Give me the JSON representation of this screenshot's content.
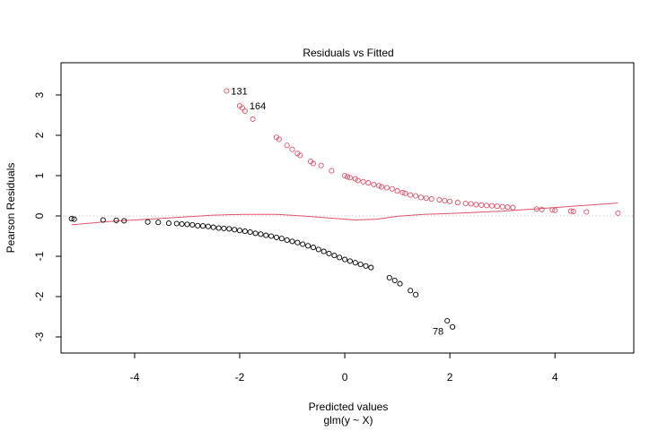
{
  "chart_data": {
    "type": "scatter",
    "title": "Residuals vs Fitted",
    "xlabel": "Predicted values",
    "xlabel_sub": "glm(y ~ X)",
    "ylabel": "Pearson Residuals",
    "xlim": [
      -5.4,
      5.5
    ],
    "ylim": [
      -3.4,
      3.8
    ],
    "x_ticks": [
      -4,
      -2,
      0,
      2,
      4
    ],
    "x_tick_labels": [
      "-4",
      "-2",
      "0",
      "2",
      "4"
    ],
    "y_ticks": [
      -3,
      -2,
      -1,
      0,
      1,
      2,
      3
    ],
    "y_tick_labels": [
      "-3",
      "-2",
      "-1",
      "0",
      "1",
      "2",
      "3"
    ],
    "grid": false,
    "reference_line": {
      "y": 0,
      "style": "dotted",
      "color": "#bebebe"
    },
    "colors": {
      "positive": "#DF536B",
      "negative": "#000000",
      "smooth": "#DF536B"
    },
    "series": [
      {
        "color": "#DF536B",
        "points": [
          [
            -2.25,
            3.1
          ],
          [
            -2.0,
            2.73
          ],
          [
            -1.95,
            2.68
          ],
          [
            -1.9,
            2.6
          ],
          [
            -1.75,
            2.4
          ],
          [
            -1.3,
            1.95
          ],
          [
            -1.25,
            1.9
          ],
          [
            -1.1,
            1.75
          ],
          [
            -1.0,
            1.65
          ],
          [
            -0.9,
            1.55
          ],
          [
            -0.85,
            1.5
          ],
          [
            -0.65,
            1.35
          ],
          [
            -0.6,
            1.3
          ],
          [
            -0.45,
            1.25
          ],
          [
            -0.25,
            1.12
          ],
          [
            0.0,
            1.0
          ],
          [
            0.05,
            0.97
          ],
          [
            0.1,
            0.95
          ],
          [
            0.2,
            0.92
          ],
          [
            0.25,
            0.88
          ],
          [
            0.35,
            0.85
          ],
          [
            0.45,
            0.82
          ],
          [
            0.55,
            0.78
          ],
          [
            0.65,
            0.75
          ],
          [
            0.7,
            0.72
          ],
          [
            0.8,
            0.7
          ],
          [
            0.9,
            0.67
          ],
          [
            1.0,
            0.62
          ],
          [
            1.1,
            0.58
          ],
          [
            1.15,
            0.56
          ],
          [
            1.25,
            0.52
          ],
          [
            1.35,
            0.5
          ],
          [
            1.45,
            0.46
          ],
          [
            1.55,
            0.44
          ],
          [
            1.65,
            0.42
          ],
          [
            1.8,
            0.4
          ],
          [
            1.9,
            0.38
          ],
          [
            2.0,
            0.36
          ],
          [
            2.15,
            0.33
          ],
          [
            2.3,
            0.31
          ],
          [
            2.4,
            0.3
          ],
          [
            2.5,
            0.28
          ],
          [
            2.6,
            0.27
          ],
          [
            2.7,
            0.26
          ],
          [
            2.8,
            0.25
          ],
          [
            2.9,
            0.24
          ],
          [
            3.0,
            0.23
          ],
          [
            3.1,
            0.22
          ],
          [
            3.2,
            0.21
          ],
          [
            3.65,
            0.17
          ],
          [
            3.75,
            0.16
          ],
          [
            3.95,
            0.15
          ],
          [
            4.0,
            0.14
          ],
          [
            4.3,
            0.12
          ],
          [
            4.35,
            0.11
          ],
          [
            4.6,
            0.1
          ],
          [
            5.2,
            0.07
          ]
        ]
      },
      {
        "color": "#000000",
        "points": [
          [
            -5.2,
            -0.07
          ],
          [
            -5.15,
            -0.08
          ],
          [
            -4.6,
            -0.1
          ],
          [
            -4.35,
            -0.11
          ],
          [
            -4.2,
            -0.12
          ],
          [
            -3.75,
            -0.15
          ],
          [
            -3.55,
            -0.16
          ],
          [
            -3.35,
            -0.18
          ],
          [
            -3.2,
            -0.19
          ],
          [
            -3.1,
            -0.2
          ],
          [
            -3.0,
            -0.21
          ],
          [
            -2.9,
            -0.22
          ],
          [
            -2.8,
            -0.24
          ],
          [
            -2.7,
            -0.25
          ],
          [
            -2.6,
            -0.26
          ],
          [
            -2.5,
            -0.28
          ],
          [
            -2.4,
            -0.3
          ],
          [
            -2.3,
            -0.31
          ],
          [
            -2.2,
            -0.32
          ],
          [
            -2.1,
            -0.34
          ],
          [
            -2.0,
            -0.36
          ],
          [
            -1.9,
            -0.38
          ],
          [
            -1.8,
            -0.4
          ],
          [
            -1.7,
            -0.43
          ],
          [
            -1.6,
            -0.45
          ],
          [
            -1.5,
            -0.48
          ],
          [
            -1.4,
            -0.5
          ],
          [
            -1.3,
            -0.53
          ],
          [
            -1.2,
            -0.56
          ],
          [
            -1.1,
            -0.6
          ],
          [
            -1.0,
            -0.63
          ],
          [
            -0.9,
            -0.66
          ],
          [
            -0.8,
            -0.7
          ],
          [
            -0.7,
            -0.74
          ],
          [
            -0.6,
            -0.78
          ],
          [
            -0.5,
            -0.83
          ],
          [
            -0.4,
            -0.88
          ],
          [
            -0.3,
            -0.93
          ],
          [
            -0.2,
            -0.98
          ],
          [
            -0.1,
            -1.03
          ],
          [
            0.0,
            -1.08
          ],
          [
            0.1,
            -1.12
          ],
          [
            0.2,
            -1.16
          ],
          [
            0.3,
            -1.2
          ],
          [
            0.4,
            -1.24
          ],
          [
            0.5,
            -1.28
          ],
          [
            0.85,
            -1.53
          ],
          [
            0.95,
            -1.6
          ],
          [
            1.05,
            -1.68
          ],
          [
            1.25,
            -1.85
          ],
          [
            1.35,
            -1.95
          ],
          [
            1.95,
            -2.6
          ],
          [
            2.05,
            -2.75
          ]
        ]
      }
    ],
    "smooth_line": [
      [
        -5.2,
        -0.22
      ],
      [
        -4.5,
        -0.14
      ],
      [
        -3.5,
        -0.06
      ],
      [
        -2.5,
        0.02
      ],
      [
        -1.9,
        0.04
      ],
      [
        -1.3,
        0.04
      ],
      [
        -0.8,
        0.0
      ],
      [
        -0.3,
        -0.05
      ],
      [
        0.2,
        -0.1
      ],
      [
        0.6,
        -0.08
      ],
      [
        1.0,
        -0.01
      ],
      [
        1.5,
        0.04
      ],
      [
        2.0,
        0.06
      ],
      [
        3.0,
        0.12
      ],
      [
        4.0,
        0.21
      ],
      [
        5.2,
        0.32
      ]
    ],
    "annotations": [
      {
        "text": "131",
        "x": -2.25,
        "y": 3.1,
        "anchor": "right"
      },
      {
        "text": "164",
        "x": -1.9,
        "y": 2.73,
        "anchor": "right"
      },
      {
        "text": "78",
        "x": 1.95,
        "y": -2.85,
        "anchor": "left"
      }
    ]
  }
}
